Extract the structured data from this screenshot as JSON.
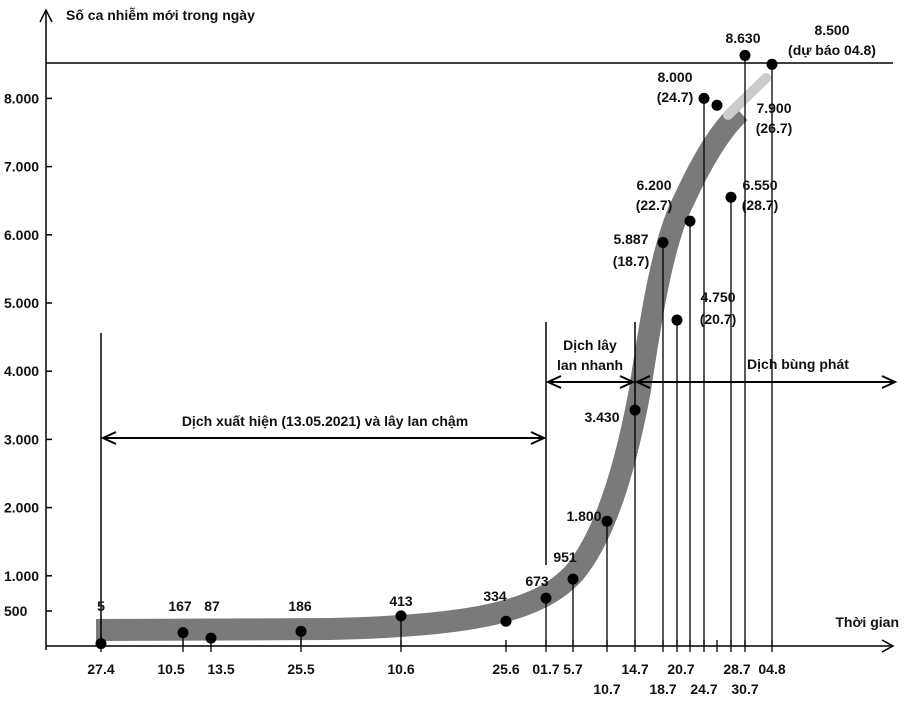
{
  "chart_data": {
    "type": "scatter",
    "ylabel": "Số ca nhiễm mới trong ngày",
    "xlabel": "Thời gian",
    "y_ticks": [
      500,
      1000,
      2000,
      3000,
      4000,
      5000,
      6000,
      7000,
      8000
    ],
    "y_tick_labels": [
      "500",
      "1.000",
      "2.000",
      "3.000",
      "4.000",
      "5.000",
      "6.000",
      "7.000",
      "8.000"
    ],
    "x_tick_labels_upper": [
      "27.4",
      "10.5",
      "13.5",
      "25.5",
      "10.6",
      "25.6",
      "01.7",
      "5.7",
      "14.7",
      "20.7",
      "28.7",
      "04.8"
    ],
    "x_tick_labels_lower": [
      "10.7",
      "18.7",
      "24.7",
      "30.7"
    ],
    "reference_line_value": 8500,
    "points": [
      {
        "date": "27.4",
        "value": 5,
        "label": "5"
      },
      {
        "date": "10.5",
        "value": 167,
        "label": "167"
      },
      {
        "date": "13.5",
        "value": 87,
        "label": "87"
      },
      {
        "date": "25.5",
        "value": 186,
        "label": "186"
      },
      {
        "date": "10.6",
        "value": 413,
        "label": "413"
      },
      {
        "date": "25.6",
        "value": 334,
        "label": "334"
      },
      {
        "date": "01.7",
        "value": 673,
        "label": "673"
      },
      {
        "date": "5.7",
        "value": 951,
        "label": "951"
      },
      {
        "date": "10.7",
        "value": 1800,
        "label": "1.800"
      },
      {
        "date": "14.7",
        "value": 3430,
        "label": "3.430"
      },
      {
        "date": "18.7",
        "value": 5887,
        "label": "5.887",
        "label2": "(18.7)"
      },
      {
        "date": "20.7",
        "value": 4750,
        "label": "4.750",
        "label2": "(20.7)"
      },
      {
        "date": "22.7",
        "value": 6200,
        "label": "6.200",
        "label2": "(22.7)"
      },
      {
        "date": "24.7",
        "value": 8000,
        "label": "8.000",
        "label2": "(24.7)"
      },
      {
        "date": "26.7",
        "value": 7900,
        "label": "7.900",
        "label2": "(26.7)"
      },
      {
        "date": "28.7",
        "value": 6550,
        "label": "6.550",
        "label2": "(28.7)"
      },
      {
        "date": "30.7",
        "value": 8630,
        "label": "8.630"
      },
      {
        "date": "04.8",
        "value": 8500,
        "label": "8.500",
        "label2": "(dự báo 04.8)"
      }
    ],
    "phases": [
      {
        "label": "Dịch xuất hiện (13.05.2021) và lây lan chậm"
      },
      {
        "label": "Dịch lây",
        "label2": "lan nhanh"
      },
      {
        "label": "Dịch bùng phát"
      }
    ],
    "colors": {
      "trend": "#7a7a7a",
      "forecast": "#cccccc",
      "points": "#000000"
    }
  }
}
